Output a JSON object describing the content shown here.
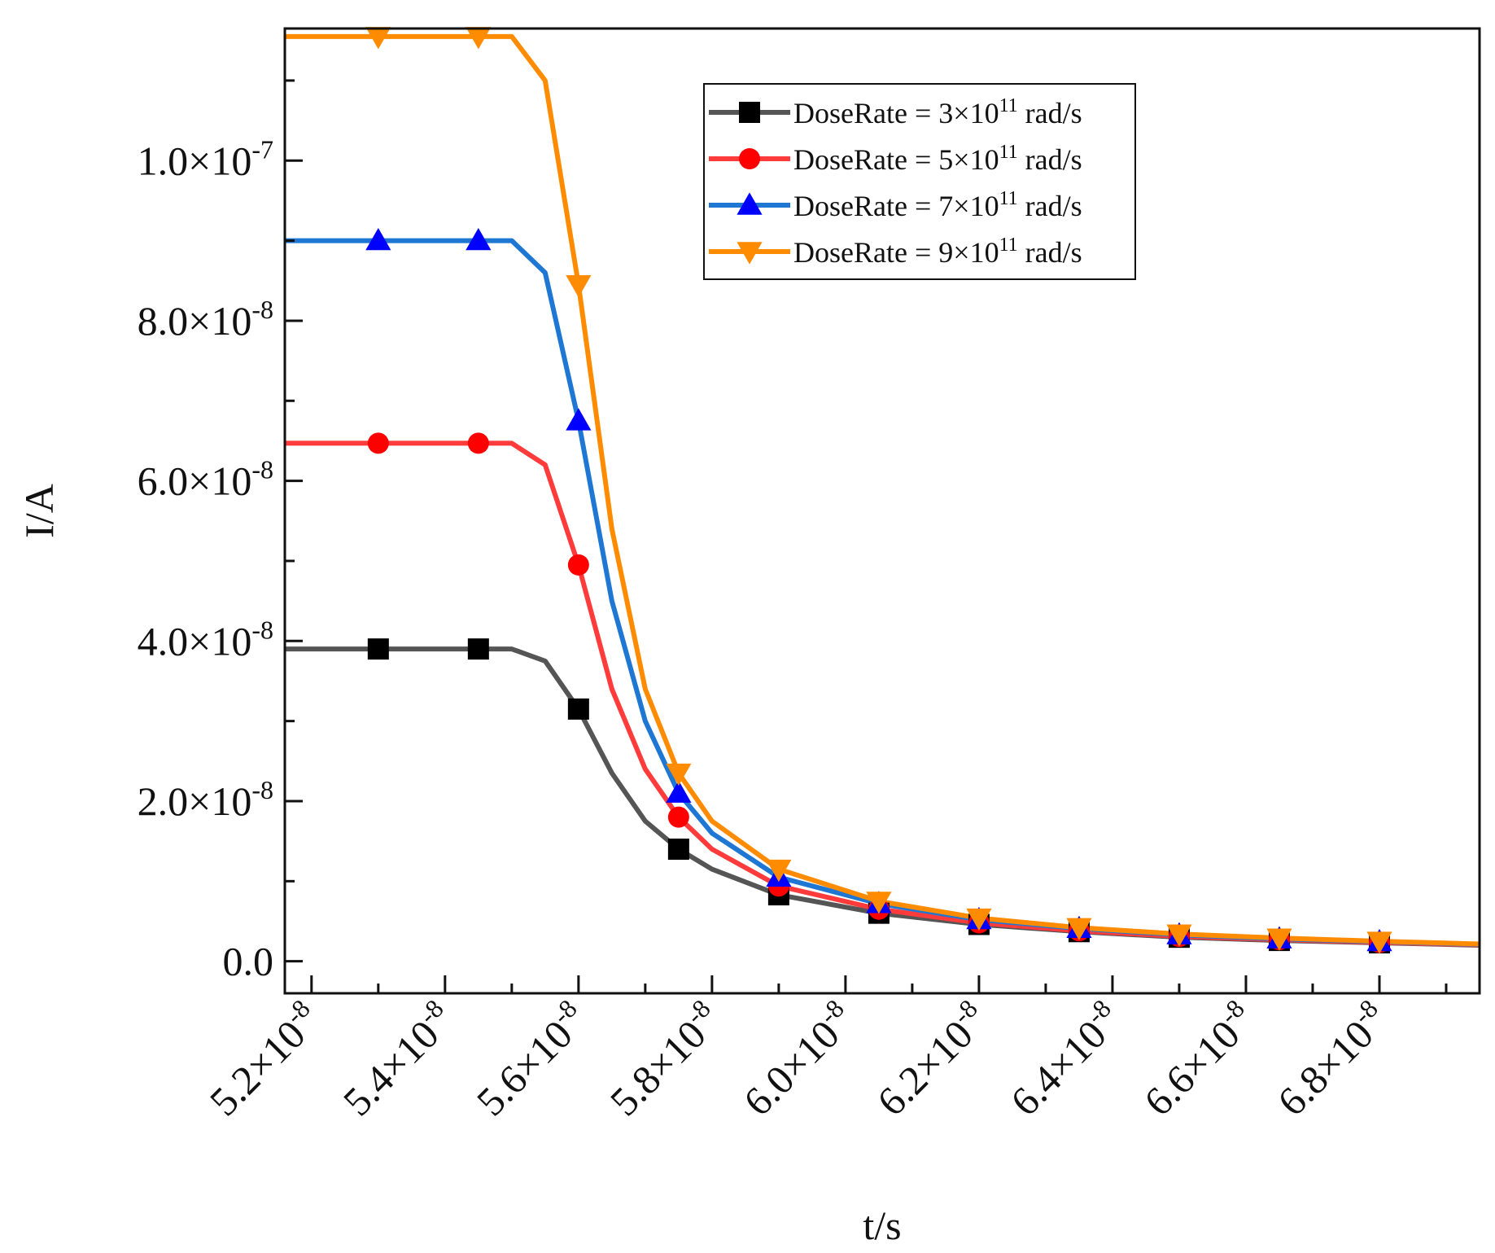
{
  "chart_data": {
    "type": "line",
    "xlabel": "t/s",
    "ylabel": "I/A",
    "xlim": [
      5.16e-08,
      6.95e-08
    ],
    "ylim": [
      -4e-09,
      1.165e-07
    ],
    "x_ticks": [
      {
        "value": 5.2e-08,
        "mantissa": "5.2",
        "exponent": "-8"
      },
      {
        "value": 5.4e-08,
        "mantissa": "5.4",
        "exponent": "-8"
      },
      {
        "value": 5.6e-08,
        "mantissa": "5.6",
        "exponent": "-8"
      },
      {
        "value": 5.8e-08,
        "mantissa": "5.8",
        "exponent": "-8"
      },
      {
        "value": 6e-08,
        "mantissa": "6.0",
        "exponent": "-8"
      },
      {
        "value": 6.2e-08,
        "mantissa": "6.2",
        "exponent": "-8"
      },
      {
        "value": 6.4e-08,
        "mantissa": "6.4",
        "exponent": "-8"
      },
      {
        "value": 6.6e-08,
        "mantissa": "6.6",
        "exponent": "-8"
      },
      {
        "value": 6.8e-08,
        "mantissa": "6.8",
        "exponent": "-8"
      }
    ],
    "y_ticks": [
      {
        "value": 0,
        "mantissa": "0.0",
        "exponent": ""
      },
      {
        "value": 2e-08,
        "mantissa": "2.0",
        "exponent": "-8"
      },
      {
        "value": 4e-08,
        "mantissa": "4.0",
        "exponent": "-8"
      },
      {
        "value": 6e-08,
        "mantissa": "6.0",
        "exponent": "-8"
      },
      {
        "value": 8e-08,
        "mantissa": "8.0",
        "exponent": "-8"
      },
      {
        "value": 1e-07,
        "mantissa": "1.0",
        "exponent": "-7"
      }
    ],
    "legend_position": "top-right",
    "grid": false,
    "x": [
      5.16e-08,
      5.3e-08,
      5.45e-08,
      5.5e-08,
      5.55e-08,
      5.6e-08,
      5.65e-08,
      5.7e-08,
      5.75e-08,
      5.8e-08,
      5.9e-08,
      6.05e-08,
      6.2e-08,
      6.35e-08,
      6.5e-08,
      6.65e-08,
      6.8e-08,
      6.95e-08
    ],
    "series": [
      {
        "name": "DoseRate = 3×10¹¹ rad/s",
        "label_prefix": "DoseRate = 3×10",
        "label_exp": "11",
        "label_suffix": " rad/s",
        "color": "#555555",
        "marker": "square",
        "values": [
          3.9e-08,
          3.9e-08,
          3.9e-08,
          3.9e-08,
          3.75e-08,
          3.15e-08,
          2.35e-08,
          1.75e-08,
          1.4e-08,
          1.15e-08,
          8.3e-09,
          6e-09,
          4.6e-09,
          3.7e-09,
          3e-09,
          2.6e-09,
          2.3e-09,
          2e-09
        ],
        "markers_at": [
          1,
          2,
          5,
          8,
          10,
          11,
          12,
          13,
          14,
          15,
          16
        ]
      },
      {
        "name": "DoseRate = 5×10¹¹ rad/s",
        "label_prefix": "DoseRate = 5×10",
        "label_exp": "11",
        "label_suffix": " rad/s",
        "color": "#ff3b3b",
        "marker": "circle",
        "values": [
          6.47e-08,
          6.47e-08,
          6.47e-08,
          6.47e-08,
          6.2e-08,
          4.95e-08,
          3.4e-08,
          2.4e-08,
          1.8e-08,
          1.4e-08,
          9.4e-09,
          6.5e-09,
          4.8e-09,
          3.8e-09,
          3.1e-09,
          2.7e-09,
          2.35e-09,
          2.05e-09
        ],
        "markers_at": [
          1,
          2,
          5,
          8,
          10,
          11,
          12,
          13,
          14,
          15,
          16
        ]
      },
      {
        "name": "DoseRate = 7×10¹¹ rad/s",
        "label_prefix": "DoseRate = 7×10",
        "label_exp": "11",
        "label_suffix": " rad/s",
        "color": "#1f77d4",
        "marker": "triangle-up",
        "values": [
          9e-08,
          9e-08,
          9e-08,
          9e-08,
          8.6e-08,
          6.75e-08,
          4.5e-08,
          3e-08,
          2.1e-08,
          1.6e-08,
          1.05e-08,
          7.2e-09,
          5.2e-09,
          4.1e-09,
          3.3e-09,
          2.8e-09,
          2.45e-09,
          2.1e-09
        ],
        "markers_at": [
          1,
          2,
          5,
          8,
          10,
          11,
          12,
          13,
          14,
          15,
          16
        ]
      },
      {
        "name": "DoseRate = 9×10¹¹ rad/s",
        "label_prefix": "DoseRate = 9×10",
        "label_exp": "11",
        "label_suffix": " rad/s",
        "color": "#ff8c00",
        "marker": "triangle-down",
        "values": [
          1.155e-07,
          1.155e-07,
          1.155e-07,
          1.155e-07,
          1.1e-07,
          8.45e-08,
          5.4e-08,
          3.4e-08,
          2.35e-08,
          1.75e-08,
          1.15e-08,
          7.5e-09,
          5.4e-09,
          4.2e-09,
          3.4e-09,
          2.9e-09,
          2.5e-09,
          2.15e-09
        ],
        "markers_at": [
          1,
          2,
          5,
          8,
          10,
          11,
          12,
          13,
          14,
          15,
          16
        ]
      }
    ]
  }
}
